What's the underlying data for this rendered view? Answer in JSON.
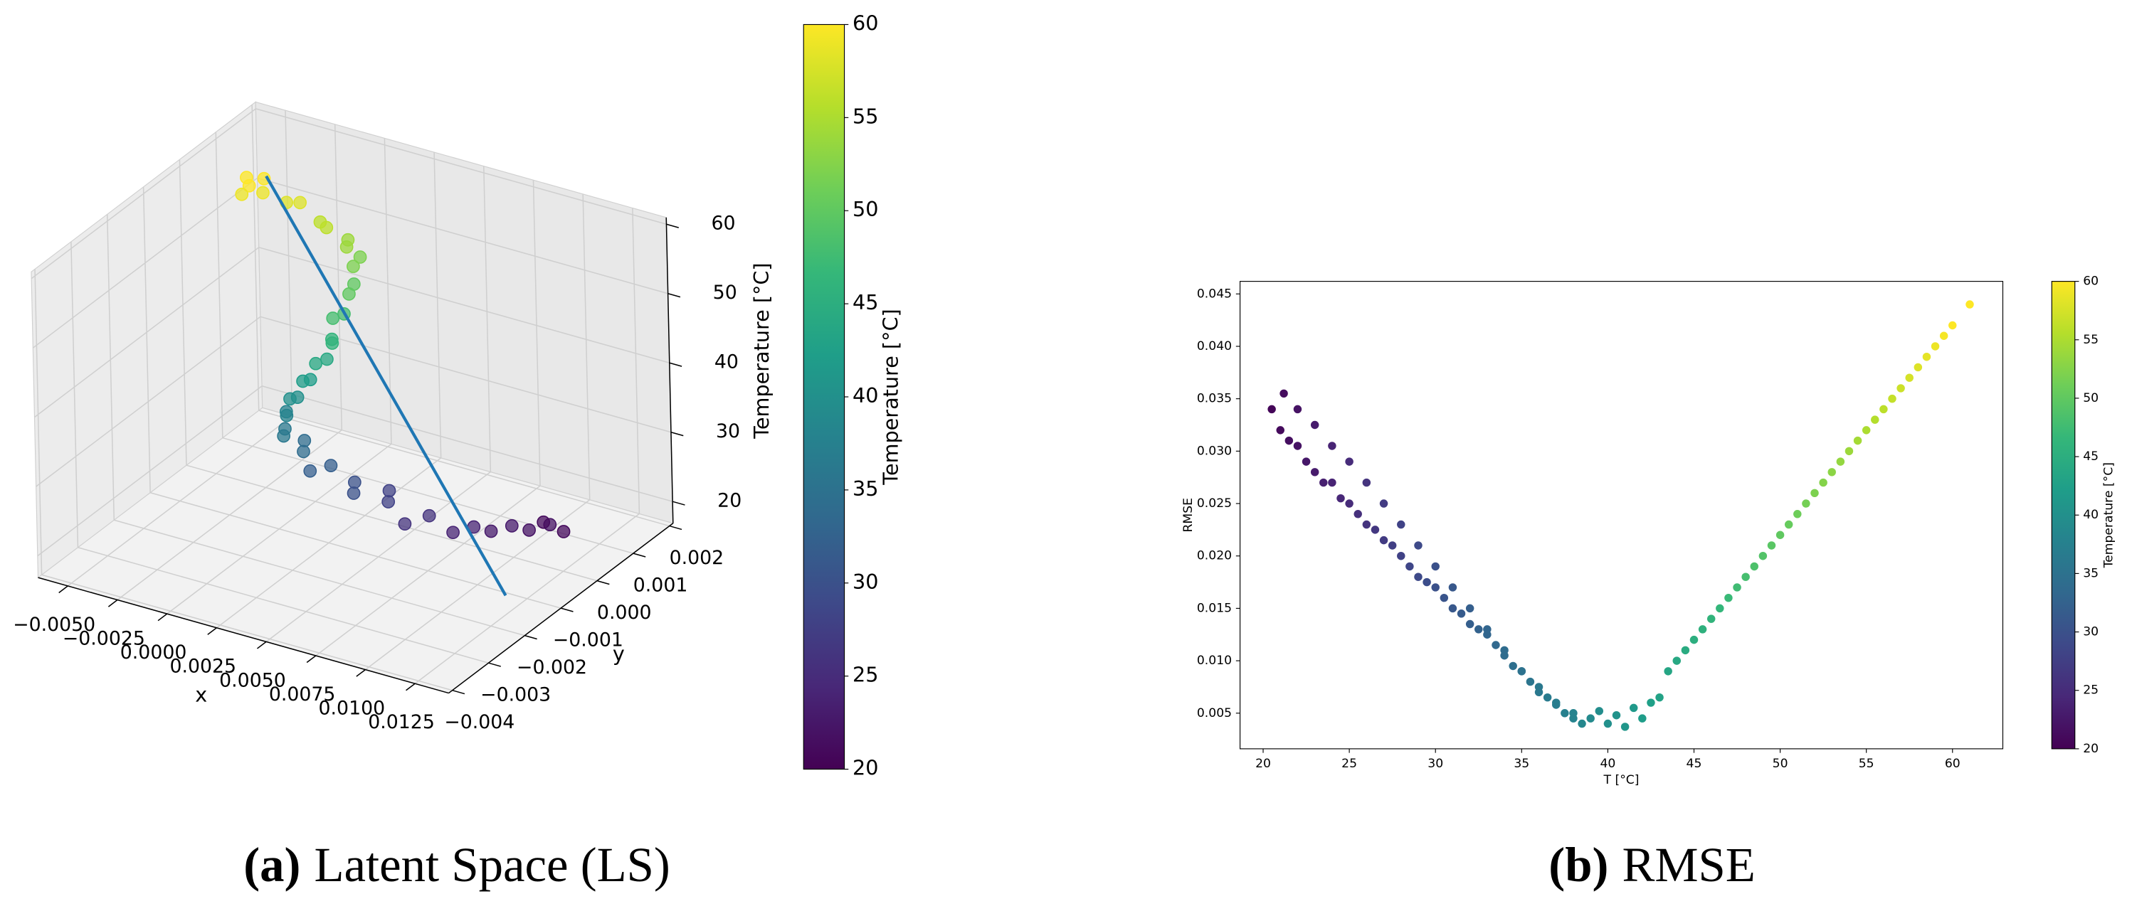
{
  "chart_data": [
    {
      "type": "scatter3d",
      "caption_label": "(a)",
      "caption_text": "Latent Space (LS)",
      "xlabel": "x",
      "ylabel": "y",
      "zlabel": "Temperature [°C]",
      "x": [
        -0.0035,
        -0.003,
        -0.0028,
        -0.0025,
        -0.0032,
        -0.0015,
        -0.001,
        0,
        0.0005,
        0.0012,
        0.0015,
        0.0018,
        0.002,
        0.0022,
        0.0025,
        0.0026,
        0.0024,
        0.0027,
        0.0029,
        0.0028,
        0.0026,
        0.0025,
        0.0023,
        0.0022,
        0.002,
        0.002,
        0.0018,
        0.0019,
        0.0022,
        0.003,
        0.0025,
        0.004,
        0.0035,
        0.005,
        0.0055,
        0.0065,
        0.006,
        0.008,
        0.0075,
        0.0095,
        0.009,
        0.0105,
        0.01,
        0.011,
        0.0115,
        0.012,
        0.0108
      ],
      "y": [
        0.0002,
        0,
        0.0003,
        0.0001,
        -0.0001,
        0.0002,
        0.0003,
        0.0003,
        0.0002,
        0.0004,
        0.0002,
        0.0004,
        0.0001,
        0,
        -0.0003,
        -0.0005,
        -0.0007,
        -0.0009,
        -0.001,
        -0.0011,
        -0.0013,
        -0.0014,
        -0.0015,
        -0.0016,
        -0.0017,
        -0.0018,
        -0.0017,
        -0.0018,
        -0.002,
        -0.0019,
        -0.0016,
        -0.0017,
        -0.002,
        -0.0016,
        -0.0019,
        -0.0015,
        -0.0012,
        -0.0012,
        -0.0016,
        -0.0008,
        -0.0011,
        -0.0003,
        -0.0006,
        -0.0001,
        0.0002,
        0.0003,
        0.0004
      ],
      "z": [
        60,
        60,
        60,
        59,
        59,
        58,
        58,
        56,
        56,
        54,
        54,
        52,
        52,
        50,
        50,
        48,
        48,
        46,
        46,
        44,
        44,
        42,
        42,
        40,
        40,
        38,
        38,
        36,
        36,
        34,
        34,
        32,
        32,
        30,
        30,
        28,
        28,
        26,
        26,
        24,
        24,
        23,
        23,
        22,
        22,
        21,
        21
      ],
      "line": {
        "x": [
          -0.0025,
          0.0116
        ],
        "y": [
          0.0002,
          -0.0011
        ],
        "z": [
          61,
          17
        ],
        "color": "#1f77b4"
      },
      "xlim": [
        -0.0065,
        0.0142
      ],
      "ylim": [
        -0.0041,
        0.0021
      ],
      "zlim": [
        16.87,
        60.97
      ],
      "xticks": [
        {
          "value": -0.005,
          "label": "−0.0050"
        },
        {
          "value": -0.0025,
          "label": "−0.0025"
        },
        {
          "value": 0,
          "label": "0.0000"
        },
        {
          "value": 0.0025,
          "label": "0.0025"
        },
        {
          "value": 0.005,
          "label": "0.0050"
        },
        {
          "value": 0.0075,
          "label": "0.0075"
        },
        {
          "value": 0.01,
          "label": "0.0100"
        },
        {
          "value": 0.0125,
          "label": "0.0125"
        }
      ],
      "yticks": [
        {
          "value": -0.004,
          "label": "−0.004"
        },
        {
          "value": -0.003,
          "label": "−0.003"
        },
        {
          "value": -0.002,
          "label": "−0.002"
        },
        {
          "value": -0.001,
          "label": "−0.001"
        },
        {
          "value": 0,
          "label": "0.000"
        },
        {
          "value": 0.001,
          "label": "0.001"
        },
        {
          "value": 0.002,
          "label": "0.002"
        }
      ],
      "zticks": [
        20,
        30,
        40,
        50,
        60
      ],
      "grid": true,
      "colormap": "viridis",
      "color_by": "z",
      "clim": [
        20,
        60
      ],
      "cticks": [
        20,
        25,
        30,
        35,
        40,
        45,
        50,
        55,
        60
      ],
      "clabel": "Temperature [°C]"
    },
    {
      "type": "scatter",
      "caption_label": "(b)",
      "caption_text": "RMSE",
      "xlabel": "T [°C]",
      "ylabel": "RMSE",
      "x": [
        20.5,
        21,
        21.5,
        22,
        22.5,
        23,
        23.5,
        24,
        24.5,
        25,
        25.5,
        26,
        26.5,
        27,
        27.5,
        28,
        28.5,
        29,
        29.5,
        30,
        30.5,
        31,
        31.5,
        32,
        32.5,
        33,
        33.5,
        34,
        34.5,
        35,
        35.5,
        36,
        36.5,
        37,
        37.5,
        38,
        38.5,
        21.2,
        22,
        23,
        24,
        25,
        26,
        27,
        28,
        29,
        30,
        31,
        32,
        33,
        34,
        35,
        36,
        37,
        38,
        39,
        39.5,
        40,
        40.5,
        41,
        41.5,
        42,
        42.5,
        43,
        43.5,
        44,
        44.5,
        45,
        45.5,
        46,
        46.5,
        47,
        47.5,
        48,
        48.5,
        49,
        49.5,
        50,
        50.5,
        51,
        51.5,
        52,
        52.5,
        53,
        53.5,
        54,
        54.5,
        55,
        55.5,
        56,
        56.5,
        57,
        57.5,
        58,
        58.5,
        59,
        59.5,
        60,
        61
      ],
      "y": [
        0.034,
        0.032,
        0.031,
        0.0305,
        0.029,
        0.028,
        0.027,
        0.027,
        0.0255,
        0.025,
        0.024,
        0.023,
        0.0225,
        0.0215,
        0.021,
        0.02,
        0.019,
        0.018,
        0.0175,
        0.017,
        0.016,
        0.015,
        0.0145,
        0.0135,
        0.013,
        0.0125,
        0.0115,
        0.0105,
        0.0095,
        0.009,
        0.008,
        0.007,
        0.0065,
        0.0058,
        0.005,
        0.0045,
        0.004,
        0.0355,
        0.034,
        0.0325,
        0.0305,
        0.029,
        0.027,
        0.025,
        0.023,
        0.021,
        0.019,
        0.017,
        0.015,
        0.013,
        0.011,
        0.009,
        0.0075,
        0.006,
        0.005,
        0.0045,
        0.0052,
        0.004,
        0.0048,
        0.0037,
        0.0055,
        0.0045,
        0.006,
        0.0065,
        0.009,
        0.01,
        0.011,
        0.012,
        0.013,
        0.014,
        0.015,
        0.016,
        0.017,
        0.018,
        0.019,
        0.02,
        0.021,
        0.022,
        0.023,
        0.024,
        0.025,
        0.026,
        0.027,
        0.028,
        0.029,
        0.03,
        0.031,
        0.032,
        0.033,
        0.034,
        0.035,
        0.036,
        0.037,
        0.038,
        0.039,
        0.04,
        0.041,
        0.042,
        0.044
      ],
      "xlim": [
        18.66,
        62.92
      ],
      "ylim": [
        0.0016,
        0.0462
      ],
      "xticks": [
        20,
        25,
        30,
        35,
        40,
        45,
        50,
        55,
        60
      ],
      "yticks": [
        0.005,
        {
          "value": 0.01,
          "label": "0.010"
        },
        0.015,
        {
          "value": 0.02,
          "label": "0.020"
        },
        0.025,
        {
          "value": 0.03,
          "label": "0.030"
        },
        0.035,
        {
          "value": 0.04,
          "label": "0.040"
        },
        0.045
      ],
      "grid": false,
      "colormap": "viridis",
      "color_by": "x",
      "clim": [
        20,
        60
      ],
      "cticks": [
        20,
        25,
        30,
        35,
        40,
        45,
        50,
        55,
        60
      ],
      "clabel": "Temperature [°C]"
    }
  ]
}
